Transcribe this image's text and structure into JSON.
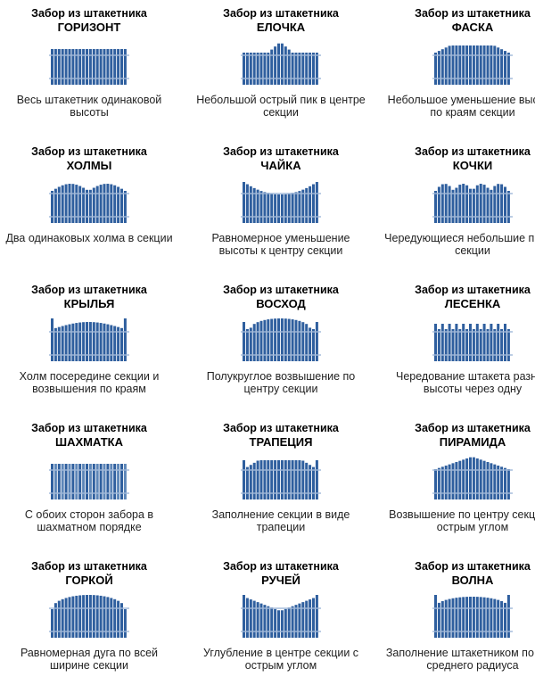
{
  "common_title": "Забор из штакетника",
  "items": [
    {
      "name": "ГОРИЗОНТ",
      "desc": "Весь штакетник одинаковой высоты",
      "shape": "flat"
    },
    {
      "name": "ЕЛОЧКА",
      "desc": "Небольшой острый пик в центре секции",
      "shape": "peak"
    },
    {
      "name": "ФАСКА",
      "desc": "Небольшое уменьшение высоты по краям секции",
      "shape": "chamfer"
    },
    {
      "name": "ХОЛМЫ",
      "desc": "Два одинаковых холма в секции",
      "shape": "hills"
    },
    {
      "name": "ЧАЙКА",
      "desc": "Равномерное уменьшение высоты к центру секции",
      "shape": "valley"
    },
    {
      "name": "КОЧКИ",
      "desc": "Чередующиеся небольшие пики в секции",
      "shape": "bumps"
    },
    {
      "name": "КРЫЛЬЯ",
      "desc": "Холм посередине секции и возвышения по краям",
      "shape": "wings"
    },
    {
      "name": "ВОСХОД",
      "desc": "Полукруглое возвышение по центру секции",
      "shape": "sunrise"
    },
    {
      "name": "ЛЕСЕНКА",
      "desc": "Чередование штакета разной высоты через одну",
      "shape": "ladder"
    },
    {
      "name": "ШАХМАТКА",
      "desc": "С обоих сторон забора в шахматном порядке",
      "shape": "checker"
    },
    {
      "name": "ТРАПЕЦИЯ",
      "desc": "Заполнение секции в виде трапеции",
      "shape": "trapeze"
    },
    {
      "name": "ПИРАМИДА",
      "desc": "Возвышение по центру секции с острым углом",
      "shape": "pyramid"
    },
    {
      "name": "ГОРКОЙ",
      "desc": "Равномерная дуга по всей ширине секции",
      "shape": "arc"
    },
    {
      "name": "РУЧЕЙ",
      "desc": "Углубление в центре секции с острым углом",
      "shape": "brook"
    },
    {
      "name": "ВОЛНА",
      "desc": "Заполнение штакетником по дуге среднего радиуса",
      "shape": "wave"
    }
  ]
}
